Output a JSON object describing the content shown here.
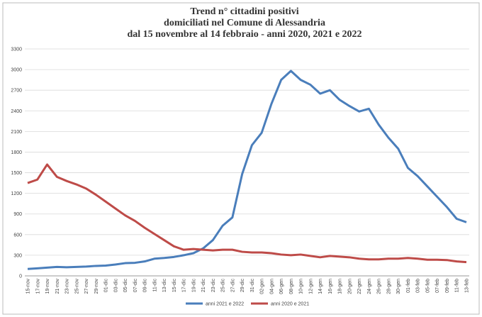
{
  "chart_data": {
    "type": "line",
    "title": [
      "Trend n° cittadini positivi",
      "domiciliati nel Comune di Alessandria",
      "dal 15 novembre al 14 febbraio - anni 2020, 2021 e 2022"
    ],
    "categories": [
      "15-nov",
      "17-nov",
      "19-nov",
      "21-nov",
      "23-nov",
      "25-nov",
      "27-nov",
      "29-nov",
      "01-dic",
      "03-dic",
      "05-dic",
      "07-dic",
      "09-dic",
      "11-dic",
      "13-dic",
      "15-dic",
      "17-dic",
      "19-dic",
      "21-dic",
      "23-dic",
      "25-dic",
      "27-dic",
      "29-dic",
      "31-dic",
      "02-gen",
      "04-gen",
      "06-gen",
      "08-gen",
      "10-gen",
      "12-gen",
      "14-gen",
      "16-gen",
      "18-gen",
      "20-gen",
      "22-gen",
      "24-gen",
      "26-gen",
      "28-gen",
      "30-gen",
      "01-feb",
      "03-feb",
      "05-feb",
      "07-feb",
      "09-feb",
      "11-feb",
      "13-feb"
    ],
    "series": [
      {
        "name": "anni 2021 e 2022",
        "color": "#4a7ebb",
        "values": [
          100,
          110,
          120,
          130,
          125,
          130,
          135,
          145,
          150,
          165,
          185,
          190,
          210,
          250,
          260,
          275,
          300,
          330,
          400,
          520,
          730,
          850,
          1480,
          1900,
          2080,
          2500,
          2850,
          2980,
          2850,
          2780,
          2650,
          2700,
          2560,
          2470,
          2390,
          2430,
          2200,
          2010,
          1850,
          1570,
          1450,
          1300,
          1150,
          1000,
          830,
          780
        ]
      },
      {
        "name": "anni 2020 e 2021",
        "color": "#be4b48",
        "values": [
          1350,
          1400,
          1620,
          1440,
          1380,
          1330,
          1270,
          1180,
          1080,
          980,
          880,
          800,
          700,
          610,
          520,
          430,
          380,
          390,
          380,
          370,
          380,
          380,
          350,
          340,
          340,
          330,
          310,
          300,
          310,
          290,
          270,
          290,
          280,
          270,
          250,
          240,
          240,
          250,
          250,
          260,
          250,
          235,
          235,
          230,
          210,
          200
        ]
      }
    ],
    "ylim": [
      0,
      3300
    ],
    "yticks": [
      0,
      300,
      600,
      900,
      1200,
      1500,
      1800,
      2100,
      2400,
      2700,
      3000,
      3300
    ],
    "grid": true
  }
}
